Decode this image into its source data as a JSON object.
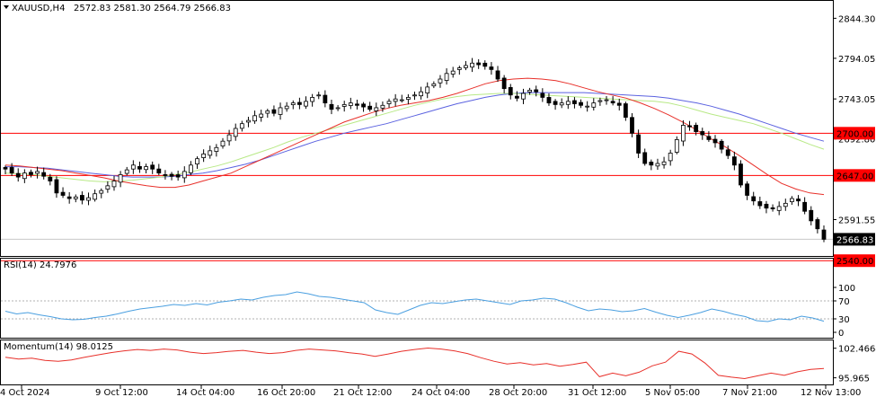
{
  "header": {
    "symbol": "XAUUSD,H4",
    "ohlc": "2572.83 2581.30 2564.79 2566.83"
  },
  "colors": {
    "candle_up": "#ffffff",
    "candle_down": "#000000",
    "ma_fast": "#e8302a",
    "ma_mid": "#b8e986",
    "ma_slow": "#5b62e0",
    "hline": "#ff0000",
    "rsi_line": "#4a9fe0",
    "momentum_line": "#e8302a"
  },
  "chart_data": [
    {
      "type": "candlestick",
      "title": "XAUUSD,H4",
      "ylim": [
        2547,
        2865
      ],
      "y_ticks": [
        2844.3,
        2794.05,
        2743.05,
        2692.8,
        2591.55
      ],
      "y_tick_labels": [
        "2844.30",
        "2794.05",
        "2743.05",
        "2692.80",
        "2591.55"
      ],
      "x_tick_labels": [
        "4 Oct 2024",
        "9 Oct 12:00",
        "14 Oct 04:00",
        "16 Oct 20:00",
        "21 Oct 12:00",
        "24 Oct 04:00",
        "28 Oct 20:00",
        "31 Oct 12:00",
        "5 Nov 05:00",
        "7 Nov 21:00",
        "12 Nov 13:00"
      ],
      "current_price": 2566.83,
      "current_price_label": "2566.83",
      "horizontal_levels": [
        {
          "value": 2700.0,
          "label": "2700.00"
        },
        {
          "value": 2647.0,
          "label": "2647.00"
        },
        {
          "value": 2540.0,
          "label": "2540.00"
        }
      ],
      "close_path": [
        2655,
        2650,
        2645,
        2650,
        2648,
        2652,
        2646,
        2640,
        2625,
        2622,
        2618,
        2620,
        2616,
        2619,
        2624,
        2628,
        2634,
        2640,
        2648,
        2654,
        2660,
        2655,
        2658,
        2655,
        2650,
        2648,
        2646,
        2645,
        2652,
        2660,
        2668,
        2674,
        2678,
        2682,
        2690,
        2698,
        2706,
        2712,
        2716,
        2722,
        2724,
        2728,
        2725,
        2732,
        2734,
        2738,
        2736,
        2740,
        2745,
        2748,
        2738,
        2730,
        2732,
        2736,
        2738,
        2735,
        2733,
        2730,
        2732,
        2735,
        2740,
        2743,
        2742,
        2745,
        2748,
        2752,
        2758,
        2762,
        2768,
        2775,
        2778,
        2782,
        2785,
        2788,
        2786,
        2784,
        2780,
        2768,
        2756,
        2748,
        2744,
        2750,
        2754,
        2752,
        2745,
        2738,
        2736,
        2738,
        2740,
        2737,
        2735,
        2734,
        2738,
        2741,
        2742,
        2738,
        2735,
        2720,
        2700,
        2675,
        2662,
        2660,
        2662,
        2664,
        2675,
        2692,
        2710,
        2708,
        2702,
        2698,
        2692,
        2688,
        2680,
        2672,
        2660,
        2635,
        2622,
        2615,
        2609,
        2606,
        2605,
        2608,
        2612,
        2618,
        2615,
        2602,
        2590,
        2580,
        2566.83
      ],
      "ma_fast": [
        2660,
        2659,
        2657,
        2655,
        2653,
        2650,
        2647,
        2644,
        2640,
        2637,
        2634,
        2632,
        2632,
        2635,
        2640,
        2645,
        2650,
        2658,
        2666,
        2674,
        2682,
        2690,
        2698,
        2706,
        2714,
        2720,
        2726,
        2731,
        2735,
        2738,
        2741,
        2745,
        2750,
        2756,
        2762,
        2766,
        2768,
        2769,
        2768,
        2766,
        2762,
        2757,
        2752,
        2748,
        2744,
        2738,
        2731,
        2723,
        2714,
        2704,
        2693,
        2683,
        2672,
        2660,
        2648,
        2637,
        2630,
        2625,
        2623
      ],
      "ma_mid": [
        2650,
        2649,
        2648,
        2646,
        2644,
        2642,
        2640,
        2639,
        2640,
        2641,
        2643,
        2645,
        2648,
        2651,
        2655,
        2659,
        2664,
        2670,
        2676,
        2682,
        2689,
        2695,
        2700,
        2705,
        2710,
        2715,
        2720,
        2725,
        2730,
        2735,
        2739,
        2743,
        2746,
        2748,
        2749,
        2750,
        2750,
        2749,
        2748,
        2747,
        2746,
        2745,
        2744,
        2743,
        2742,
        2741,
        2740,
        2738,
        2734,
        2729,
        2724,
        2720,
        2716,
        2712,
        2706,
        2700,
        2693,
        2686,
        2680
      ],
      "ma_slow": [
        2658,
        2658,
        2657,
        2656,
        2654,
        2652,
        2650,
        2648,
        2646,
        2645,
        2645,
        2645,
        2646,
        2648,
        2650,
        2653,
        2657,
        2661,
        2666,
        2672,
        2678,
        2684,
        2690,
        2695,
        2700,
        2704,
        2708,
        2712,
        2717,
        2722,
        2727,
        2732,
        2737,
        2741,
        2745,
        2748,
        2750,
        2751,
        2751,
        2751,
        2751,
        2751,
        2750,
        2749,
        2748,
        2747,
        2746,
        2744,
        2741,
        2738,
        2734,
        2729,
        2724,
        2718,
        2712,
        2706,
        2700,
        2695,
        2690
      ]
    },
    {
      "type": "line",
      "title": "RSI(14) 24.7976",
      "ylim": [
        0,
        100
      ],
      "y_ticks": [
        100,
        70,
        30,
        0
      ],
      "y_tick_labels": [
        "100",
        "70",
        "30",
        "0"
      ],
      "values": [
        47,
        41,
        44,
        39,
        35,
        30,
        28,
        29,
        33,
        36,
        41,
        47,
        52,
        55,
        58,
        62,
        60,
        64,
        61,
        67,
        70,
        74,
        72,
        78,
        82,
        84,
        90,
        86,
        80,
        78,
        74,
        70,
        66,
        50,
        44,
        40,
        50,
        60,
        66,
        64,
        68,
        72,
        74,
        70,
        66,
        62,
        70,
        72,
        76,
        74,
        66,
        56,
        48,
        52,
        50,
        46,
        48,
        53,
        45,
        38,
        33,
        38,
        44,
        52,
        47,
        40,
        35,
        26,
        24,
        30,
        28,
        36,
        32,
        24.8
      ]
    },
    {
      "type": "line",
      "title": "Momentum(14) 98.0125",
      "ylim": [
        95.3,
        103.2
      ],
      "y_ticks": [
        102.4664,
        95.965
      ],
      "y_tick_labels": [
        "102.4664",
        "95.965"
      ],
      "values": [
        100.5,
        100.1,
        100.3,
        99.8,
        99.6,
        99.9,
        100.5,
        101.0,
        101.5,
        101.9,
        102.2,
        102.0,
        102.3,
        102.1,
        101.6,
        101.3,
        101.5,
        101.8,
        102.0,
        101.6,
        101.3,
        101.5,
        102.0,
        102.3,
        102.1,
        101.9,
        101.5,
        101.2,
        100.7,
        101.2,
        101.8,
        102.2,
        102.5,
        102.3,
        101.9,
        101.3,
        100.4,
        99.6,
        99.0,
        99.3,
        98.8,
        99.1,
        98.5,
        98.9,
        99.4,
        96.2,
        97.0,
        96.4,
        97.2,
        98.6,
        99.4,
        101.8,
        101.2,
        99.2,
        96.5,
        96.1,
        95.8,
        96.4,
        97.0,
        96.5,
        97.3,
        97.8,
        98.0125
      ]
    }
  ]
}
